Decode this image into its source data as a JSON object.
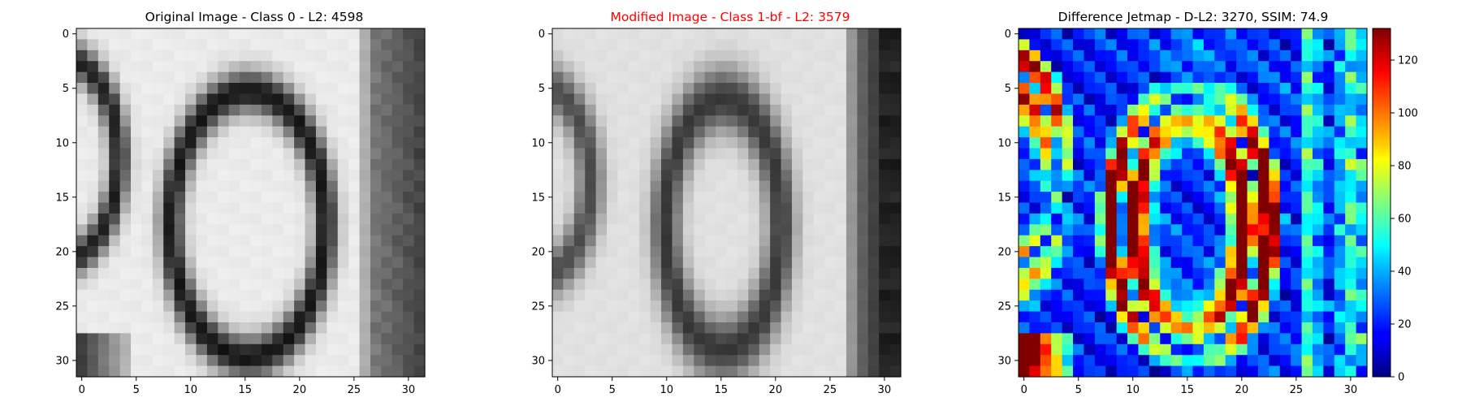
{
  "chart_data": [
    {
      "type": "heatmap",
      "title": "Original Image - Class 0 - L2: 4598",
      "title_color": "#000000",
      "colormap": "gray",
      "image_size": [
        32,
        32
      ],
      "xticks": [
        0,
        5,
        10,
        15,
        20,
        25,
        30
      ],
      "yticks": [
        0,
        5,
        10,
        15,
        20,
        25,
        30
      ],
      "xlim": [
        -0.5,
        31.5
      ],
      "ylim": [
        31.5,
        -0.5
      ],
      "grid": false
    },
    {
      "type": "heatmap",
      "title": "Modified Image - Class 1-bf - L2: 3579",
      "title_color": "#ff0000",
      "colormap": "gray",
      "image_size": [
        32,
        32
      ],
      "xticks": [
        0,
        5,
        10,
        15,
        20,
        25,
        30
      ],
      "yticks": [
        0,
        5,
        10,
        15,
        20,
        25,
        30
      ],
      "xlim": [
        -0.5,
        31.5
      ],
      "ylim": [
        31.5,
        -0.5
      ],
      "grid": false
    },
    {
      "type": "heatmap",
      "title": "Difference Jetmap - D-L2: 3270, SSIM: 74.9",
      "title_color": "#000000",
      "colormap": "jet",
      "image_size": [
        32,
        32
      ],
      "xticks": [
        0,
        5,
        10,
        15,
        20,
        25,
        30
      ],
      "yticks": [
        0,
        5,
        10,
        15,
        20,
        25,
        30
      ],
      "xlim": [
        -0.5,
        31.5
      ],
      "ylim": [
        31.5,
        -0.5
      ],
      "grid": false,
      "colorbar": {
        "min": 0,
        "max": 132,
        "ticks": [
          0,
          20,
          40,
          60,
          80,
          100,
          120
        ]
      }
    }
  ]
}
